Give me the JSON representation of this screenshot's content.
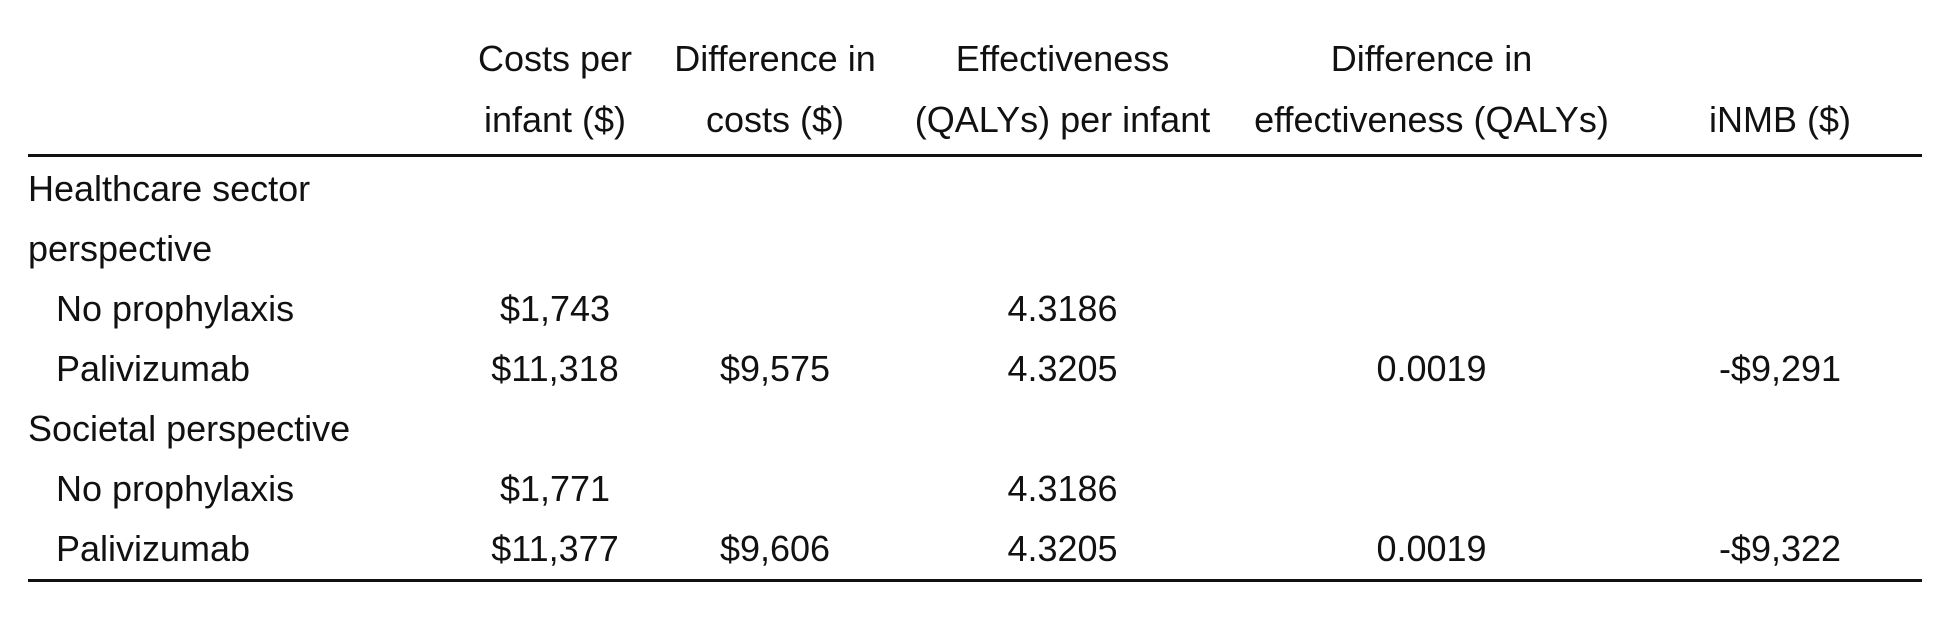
{
  "table": {
    "headers": [
      {
        "lines": [
          "",
          ""
        ]
      },
      {
        "lines": [
          "Costs per",
          "infant ($)"
        ]
      },
      {
        "lines": [
          "Difference in",
          "costs ($)"
        ]
      },
      {
        "lines": [
          "Effectiveness",
          "(QALYs) per infant"
        ]
      },
      {
        "lines": [
          "Difference in",
          "effectiveness (QALYs)"
        ]
      },
      {
        "lines": [
          "",
          "iNMB ($)"
        ]
      }
    ],
    "groups": [
      {
        "label_lines": [
          "Healthcare sector",
          "perspective"
        ],
        "rows": [
          {
            "label": "No prophylaxis",
            "cost": "$1,743",
            "diff_cost": "",
            "effectiveness": "4.3186",
            "diff_effectiveness": "",
            "inmb": ""
          },
          {
            "label": "Palivizumab",
            "cost": "$11,318",
            "diff_cost": "$9,575",
            "effectiveness": "4.3205",
            "diff_effectiveness": "0.0019",
            "inmb": "-$9,291"
          }
        ]
      },
      {
        "label_lines": [
          "Societal perspective"
        ],
        "rows": [
          {
            "label": "No prophylaxis",
            "cost": "$1,771",
            "diff_cost": "",
            "effectiveness": "4.3186",
            "diff_effectiveness": "",
            "inmb": ""
          },
          {
            "label": "Palivizumab",
            "cost": "$11,377",
            "diff_cost": "$9,606",
            "effectiveness": "4.3205",
            "diff_effectiveness": "0.0019",
            "inmb": "-$9,322"
          }
        ]
      }
    ]
  }
}
